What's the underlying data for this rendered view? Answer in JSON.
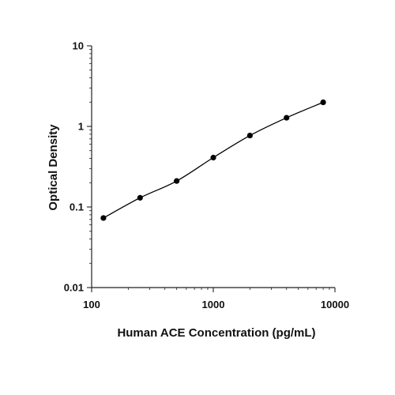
{
  "chart_data": {
    "type": "scatter",
    "title": "",
    "xlabel": "Human ACE Concentration (pg/mL)",
    "ylabel": "Optical Density",
    "x_scale": "log",
    "y_scale": "log",
    "xlim": [
      100,
      10000
    ],
    "ylim": [
      0.01,
      10
    ],
    "x_ticks": [
      "100",
      "1000",
      "10000"
    ],
    "y_ticks": [
      "10",
      "1",
      "0.1",
      "0.01"
    ],
    "grid": false,
    "legend": "none",
    "fit_curve": true,
    "point_color": "#000000",
    "line_color": "#000000",
    "series": [
      {
        "x": [
          125,
          250,
          500,
          1000,
          2000,
          4000,
          8000
        ],
        "y": [
          0.073,
          0.13,
          0.21,
          0.41,
          0.77,
          1.28,
          1.99
        ]
      }
    ]
  }
}
